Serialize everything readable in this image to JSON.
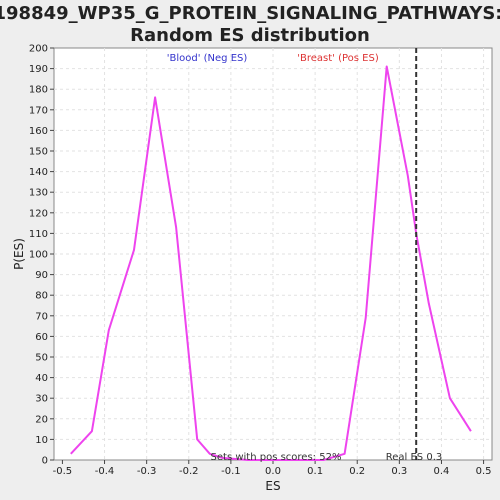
{
  "chart_data": {
    "type": "line",
    "title_line1": "198849_WP35_G_PROTEIN_SIGNALING_PATHWAYS:",
    "title_line2": "Random ES distribution",
    "xlabel": "ES",
    "ylabel": "P(ES)",
    "xlim": [
      -0.52,
      0.52
    ],
    "ylim": [
      0,
      200
    ],
    "xticks": [
      -0.5,
      -0.4,
      -0.3,
      -0.2,
      -0.1,
      0.0,
      0.1,
      0.2,
      0.3,
      0.4,
      0.5
    ],
    "xtick_labels": [
      "-0.5",
      "-0.4",
      "-0.3",
      "-0.2",
      "-0.1",
      "0.0",
      "0.1",
      "0.2",
      "0.3",
      "0.4",
      "0.5"
    ],
    "yticks": [
      0,
      10,
      20,
      30,
      40,
      50,
      60,
      70,
      80,
      90,
      100,
      110,
      120,
      130,
      140,
      150,
      160,
      170,
      180,
      190,
      200
    ],
    "grid": true,
    "series": [
      {
        "color": "#ee44ee",
        "x": [
          -0.48,
          -0.43,
          -0.39,
          -0.33,
          -0.28,
          -0.23,
          -0.18,
          -0.15,
          -0.12,
          -0.06,
          0.0,
          0.06,
          0.12,
          0.17,
          0.22,
          0.27,
          0.32,
          0.34,
          0.37,
          0.42,
          0.47
        ],
        "y": [
          3,
          14,
          63,
          102,
          176,
          113,
          10,
          3,
          1,
          0,
          0,
          0,
          0,
          3,
          69,
          191,
          138,
          110,
          76,
          30,
          14
        ]
      }
    ],
    "legend_neg": "'Blood' (Neg ES)",
    "legend_pos": "'Breast' (Pos ES)",
    "legend_neg_color": "#3333cc",
    "legend_pos_color": "#dd3333",
    "real_es_x": 0.34,
    "real_es_label": "Real ES 0.3",
    "pos_scores_label": "Sets with pos scores: 52%"
  }
}
